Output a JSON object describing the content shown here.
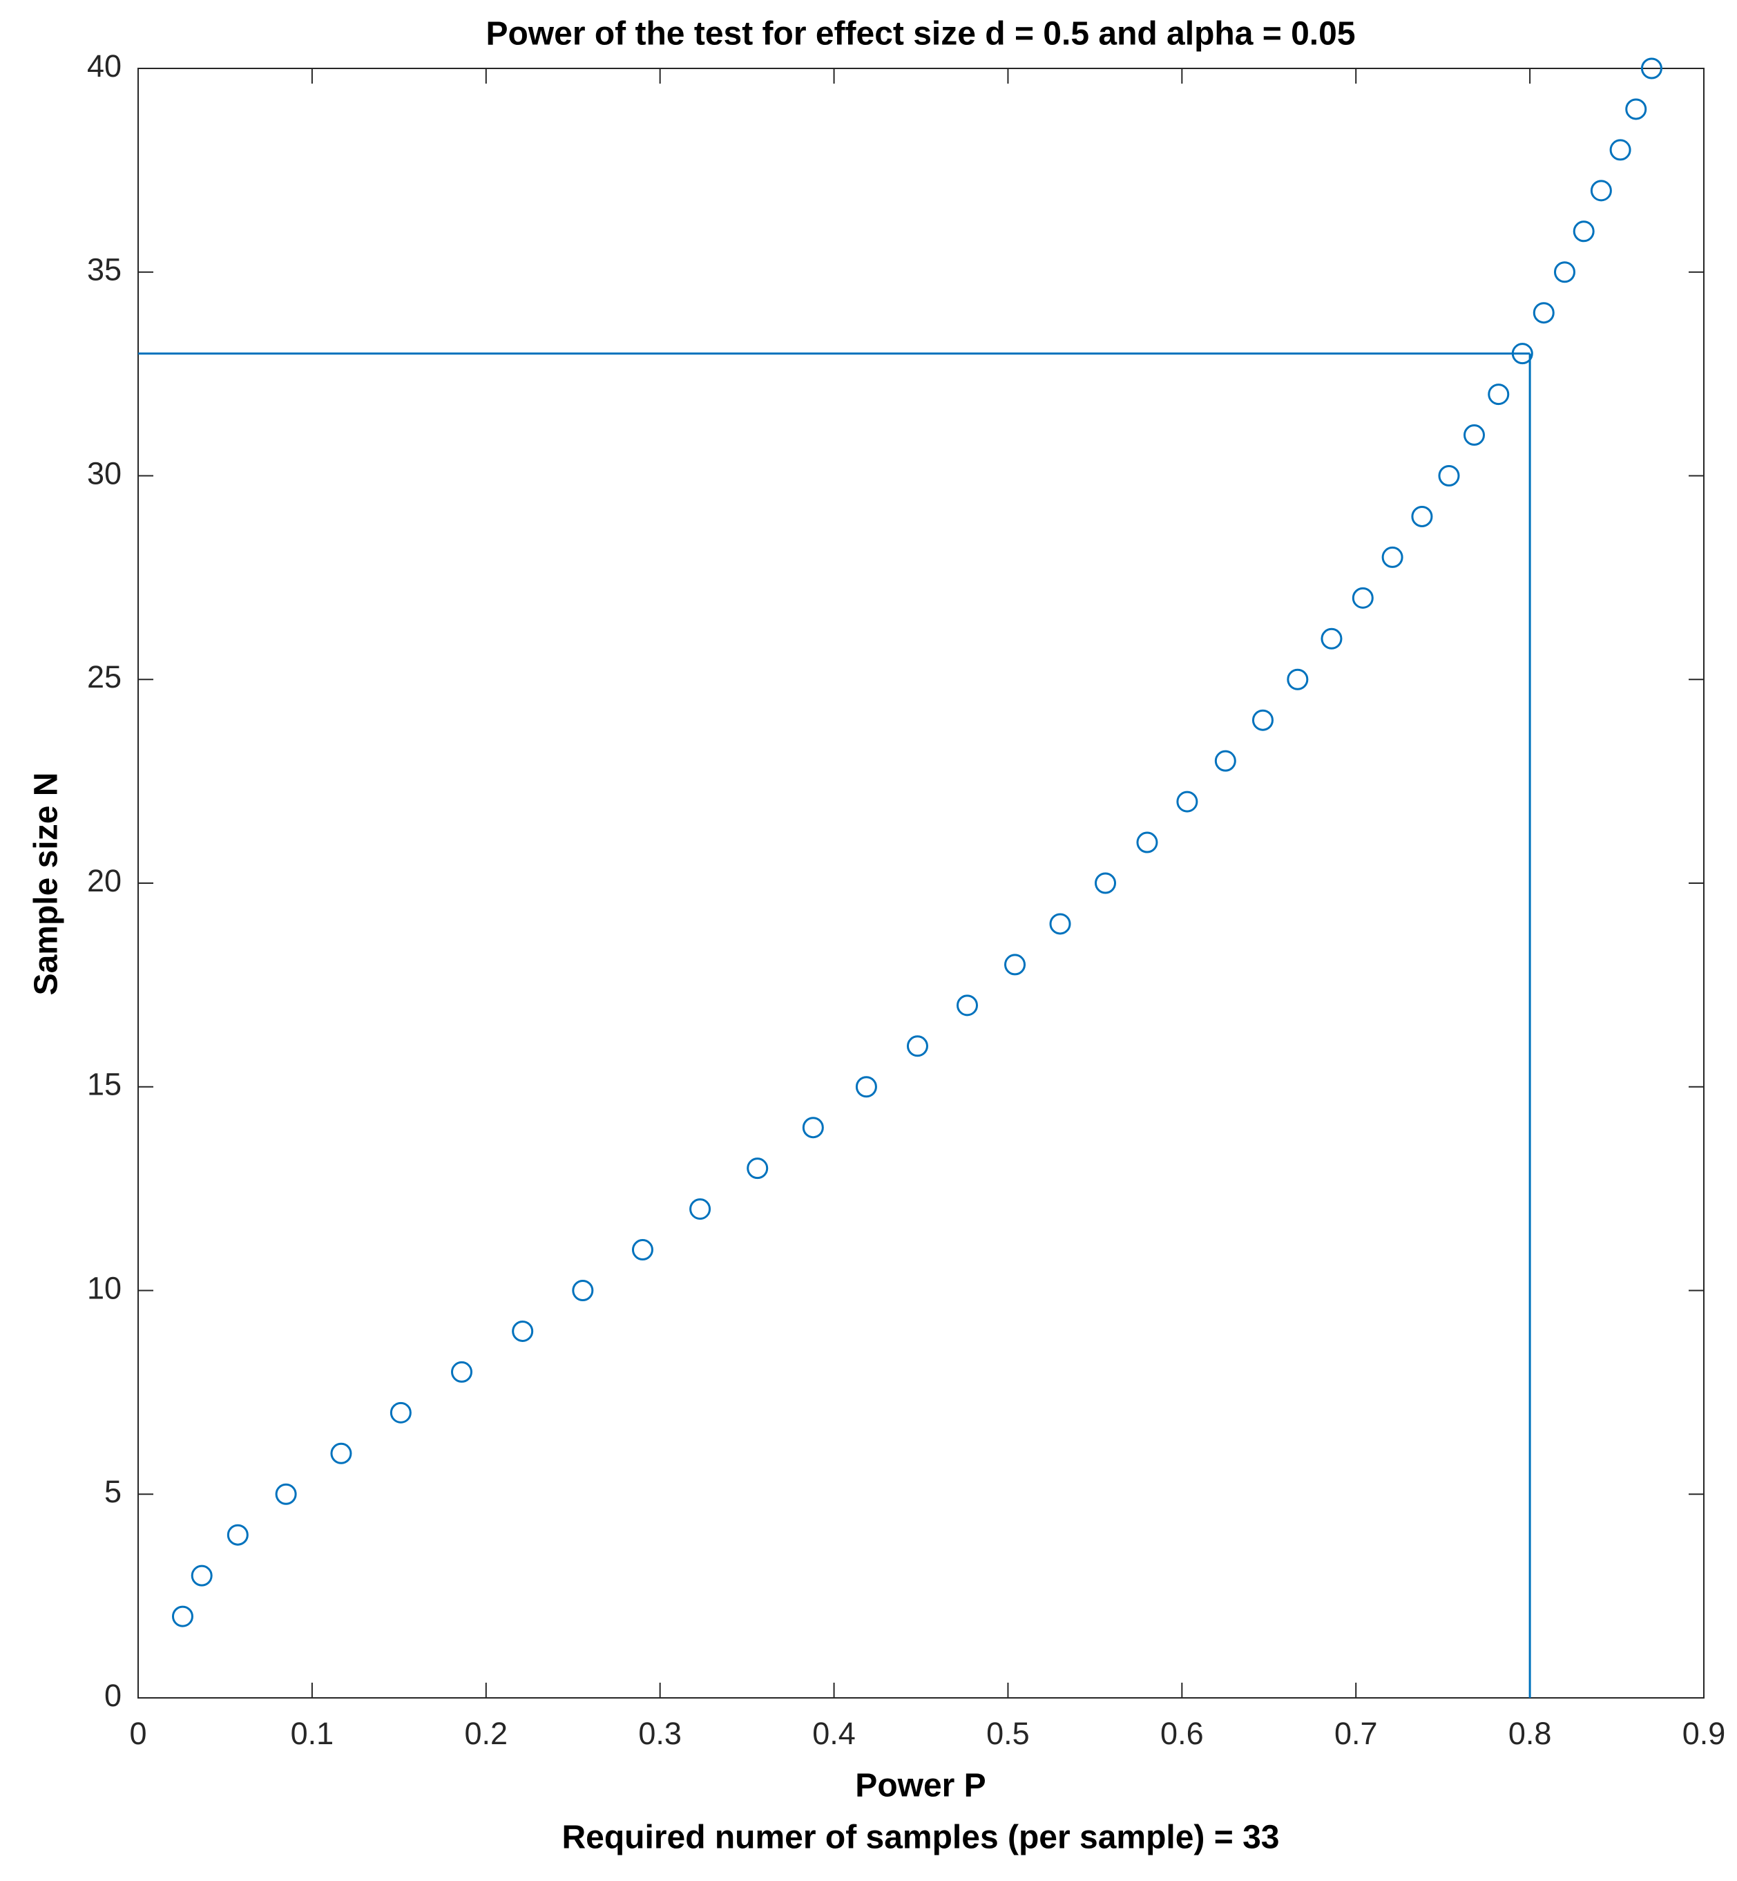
{
  "chart_data": {
    "type": "scatter",
    "title": "Power of the test for effect size d = 0.5 and alpha = 0.05",
    "x_label": "Power P",
    "y_label": "Sample size N",
    "note": "Required numer of samples (per sample) = 33",
    "x": [
      0.0256,
      0.0366,
      0.0573,
      0.085,
      0.1167,
      0.151,
      0.186,
      0.221,
      0.2556,
      0.29,
      0.323,
      0.356,
      0.388,
      0.4186,
      0.448,
      0.4766,
      0.504,
      0.53,
      0.556,
      0.58,
      0.603,
      0.625,
      0.6465,
      0.6665,
      0.686,
      0.704,
      0.721,
      0.738,
      0.7535,
      0.768,
      0.782,
      0.7957,
      0.808,
      0.82,
      0.831,
      0.841,
      0.852,
      0.861,
      0.87
    ],
    "values": [
      2,
      3,
      4,
      5,
      6,
      7,
      8,
      9,
      10,
      11,
      12,
      13,
      14,
      15,
      16,
      17,
      18,
      19,
      20,
      21,
      22,
      23,
      24,
      25,
      26,
      27,
      28,
      29,
      30,
      31,
      32,
      33,
      34,
      35,
      36,
      37,
      38,
      39,
      40
    ],
    "color": "#0072bd",
    "reference_lines": {
      "x": 0.8,
      "y": 33
    },
    "xlim": [
      0,
      0.9
    ],
    "xticks": [
      0,
      0.1,
      0.2,
      0.3,
      0.4,
      0.5,
      0.6,
      0.7,
      0.8,
      0.9
    ],
    "ylim": [
      0,
      40
    ],
    "yticks": [
      0,
      5,
      10,
      15,
      20,
      25,
      30,
      35,
      40
    ],
    "grid": false
  }
}
